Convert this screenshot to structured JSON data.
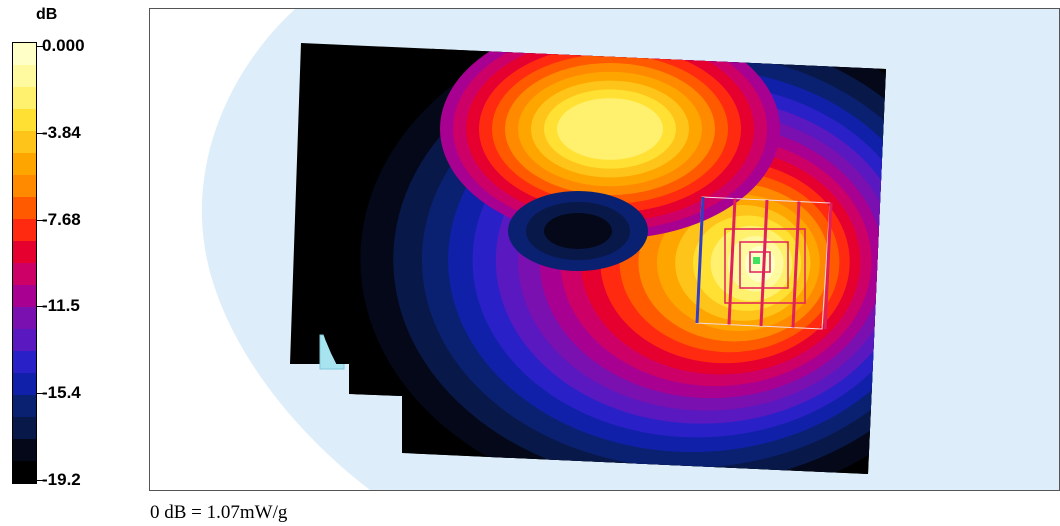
{
  "scale": {
    "unit": "dB",
    "ticks": [
      "0.000",
      "-3.84",
      "-7.68",
      "-11.5",
      "-15.4",
      "-19.2"
    ],
    "bands": [
      "#ffffc8",
      "#fff9a0",
      "#fff06e",
      "#ffe033",
      "#ffc41a",
      "#ffa500",
      "#ff8a00",
      "#ff5a00",
      "#ff2a10",
      "#e60030",
      "#cc0066",
      "#a80090",
      "#7a10b0",
      "#5a18c0",
      "#2a20c8",
      "#1020a8",
      "#0a2070",
      "#081848",
      "#040818",
      "#000000"
    ]
  },
  "map": {
    "background_color": "#ddeefa",
    "surface_color": "#000000",
    "marker_color": "#40e060",
    "grid_color": "#e0205a"
  },
  "reference": "0 dB = 1.07mW/g"
}
